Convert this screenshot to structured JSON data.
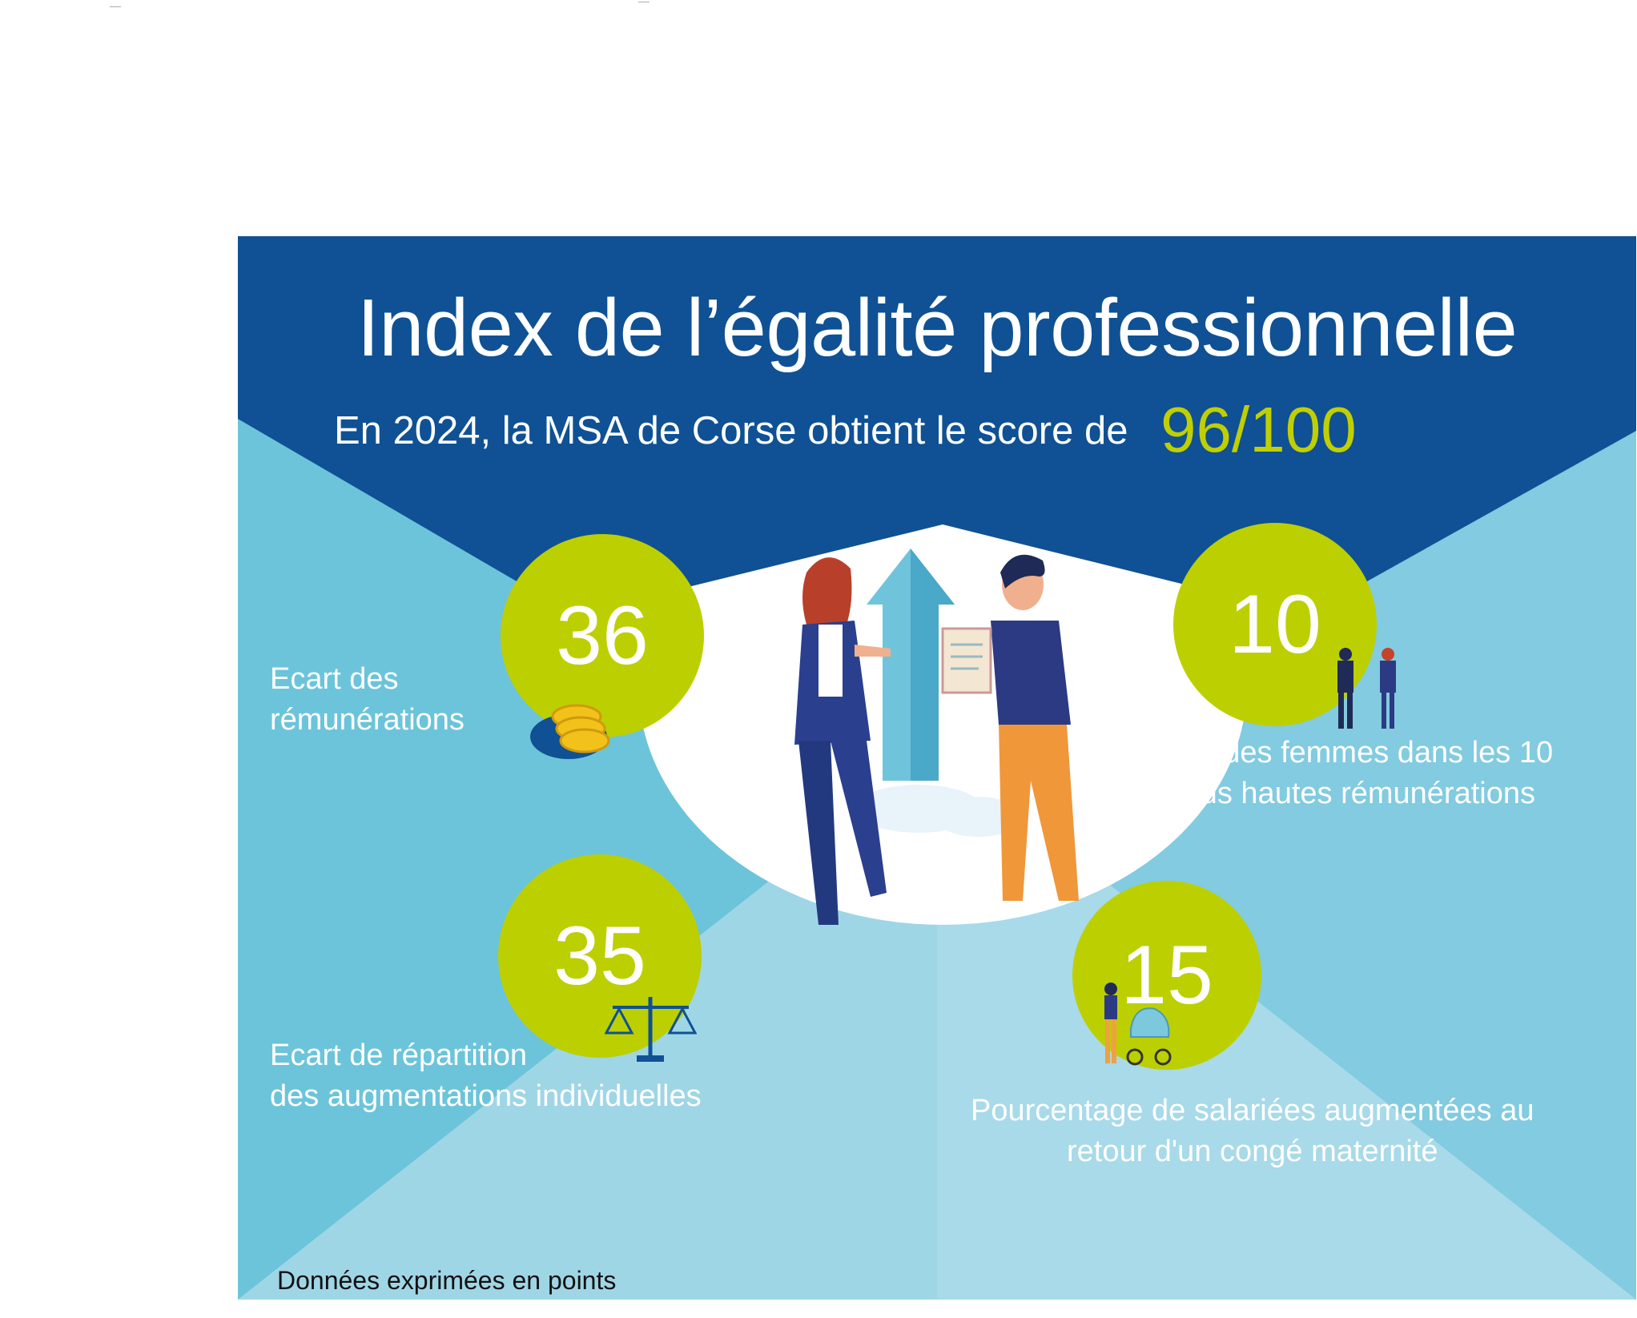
{
  "header": {
    "title": "Index de l’égalité professionnelle",
    "subtitle": "En 2024, la MSA de Corse obtient le score de",
    "score": "96/100"
  },
  "indicators": [
    {
      "value": "36",
      "label": "Ecart des rémunérations",
      "icon": "coins-icon"
    },
    {
      "value": "10",
      "label": "Part des femmes dans les 10 plus hautes rémunérations",
      "icon": "business-people-icon"
    },
    {
      "value": "35",
      "label": "Ecart de répartition des augmentations individuelles",
      "icon": "scales-icon"
    },
    {
      "value": "15",
      "label": "Pourcentage de salariées augmentées au retour d'un congé maternité",
      "icon": "mother-stroller-icon"
    }
  ],
  "labels_lines": {
    "i0_l1": "Ecart des",
    "i0_l2": "rémunérations",
    "i1_l1": "Part des femmes dans les 10",
    "i1_l2": "plus hautes rémunérations",
    "i2_l1": "Ecart de répartition",
    "i2_l2": "des augmentations individuelles",
    "i3_l1": "Pourcentage de salariées augmentées au",
    "i3_l2": "retour d'un congé maternité"
  },
  "footnote": "Données exprimées en points",
  "colors": {
    "header_blue": "#0f5194",
    "light_blue": "#69c3d9",
    "pale_blue": "#94d0e2",
    "lime": "#bccf00"
  },
  "illustration": "two-people-clipboard-illustration"
}
